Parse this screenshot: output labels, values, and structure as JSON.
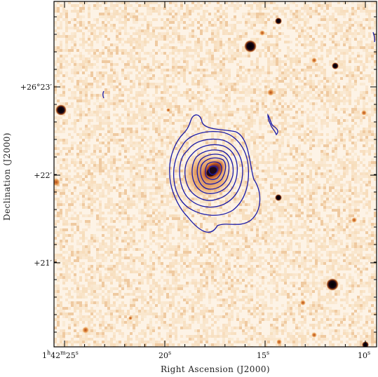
{
  "figure": {
    "xlabel": "Right Ascension (J2000)",
    "ylabel": "Declination (J2000)",
    "x_ticks": [
      {
        "main": "1",
        "sup1": "h",
        "mid": "42",
        "sup2": "m",
        "tail": "25",
        "sup3": "s"
      },
      {
        "main": "20",
        "sup1": "s"
      },
      {
        "main": "15",
        "sup1": "s"
      },
      {
        "main": "10",
        "sup1": "s"
      }
    ],
    "y_ticks": [
      {
        "label": "+26°23′"
      },
      {
        "label": "+22′"
      },
      {
        "label": "+21′"
      }
    ],
    "colors": {
      "background": "#fdf3e6",
      "noise_light": "#f4d3a8",
      "noise_dark": "#e4a868",
      "source": "#3a1230",
      "contour": "#1a1aa8",
      "frame": "#000000"
    },
    "contour_levels": 9
  }
}
